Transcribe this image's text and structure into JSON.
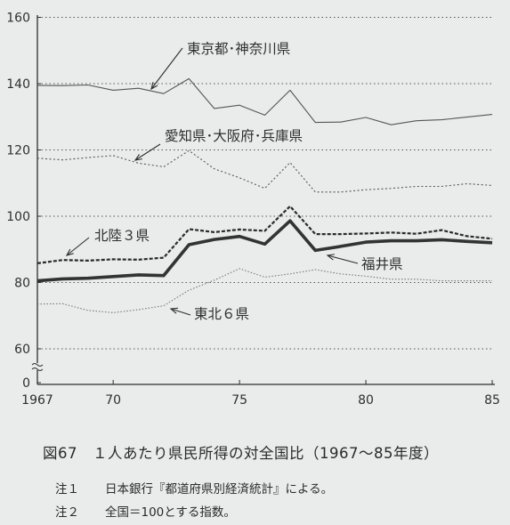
{
  "figure": {
    "caption": "図67　１人あたり県民所得の対全国比（1967〜85年度）",
    "notes": [
      {
        "label": "注１",
        "text": "日本銀行『都道府県別経済統計』による。"
      },
      {
        "label": "注２",
        "text": "全国＝100とする指数。"
      }
    ]
  },
  "chart_data": {
    "type": "line",
    "y_axis_break": true,
    "ylim": [
      60,
      160
    ],
    "yticks": [
      "160",
      "140",
      "120",
      "100",
      "80",
      "60",
      "0"
    ],
    "xticks": [
      "1967",
      "70",
      "75",
      "80",
      "85"
    ],
    "x": [
      1967,
      1968,
      1969,
      1970,
      1971,
      1972,
      1973,
      1974,
      1975,
      1976,
      1977,
      1978,
      1979,
      1980,
      1981,
      1982,
      1983,
      1984,
      1985
    ],
    "grid": "horizontal-dotted",
    "series": [
      {
        "name": "東京都･神奈川県",
        "style": "solid-thin",
        "values": [
          139.5,
          139.4,
          139.6,
          138.0,
          138.6,
          137.0,
          141.5,
          132.5,
          133.5,
          130.5,
          138.0,
          128.3,
          128.4,
          129.8,
          127.6,
          128.8,
          129.1,
          129.9,
          130.7
        ]
      },
      {
        "name": "愛知県･大阪府･兵庫県",
        "style": "dotted",
        "values": [
          117.5,
          117.0,
          117.7,
          118.3,
          116.0,
          114.9,
          119.8,
          114.3,
          111.6,
          108.4,
          116.2,
          107.3,
          107.3,
          108.0,
          108.4,
          109.0,
          109.0,
          109.8,
          109.3
        ]
      },
      {
        "name": "北陸３県",
        "style": "dashed-bold",
        "values": [
          85.8,
          86.8,
          86.6,
          87.0,
          86.9,
          87.5,
          96.1,
          95.2,
          96.0,
          95.6,
          103.0,
          94.6,
          94.6,
          94.8,
          95.1,
          94.7,
          95.8,
          94.0,
          93.2
        ]
      },
      {
        "name": "福井県",
        "style": "solid-bold",
        "values": [
          80.5,
          81.1,
          81.3,
          81.8,
          82.3,
          82.1,
          91.4,
          93.0,
          93.9,
          91.6,
          98.6,
          89.7,
          90.9,
          92.2,
          92.6,
          92.6,
          92.9,
          92.4,
          92.0
        ]
      },
      {
        "name": "東北６県",
        "style": "dotted-light",
        "values": [
          73.5,
          73.6,
          71.6,
          70.9,
          71.8,
          73.0,
          77.7,
          80.7,
          84.2,
          81.6,
          82.6,
          83.9,
          82.6,
          81.9,
          81.0,
          81.0,
          80.5,
          80.5,
          80.5
        ]
      }
    ]
  }
}
